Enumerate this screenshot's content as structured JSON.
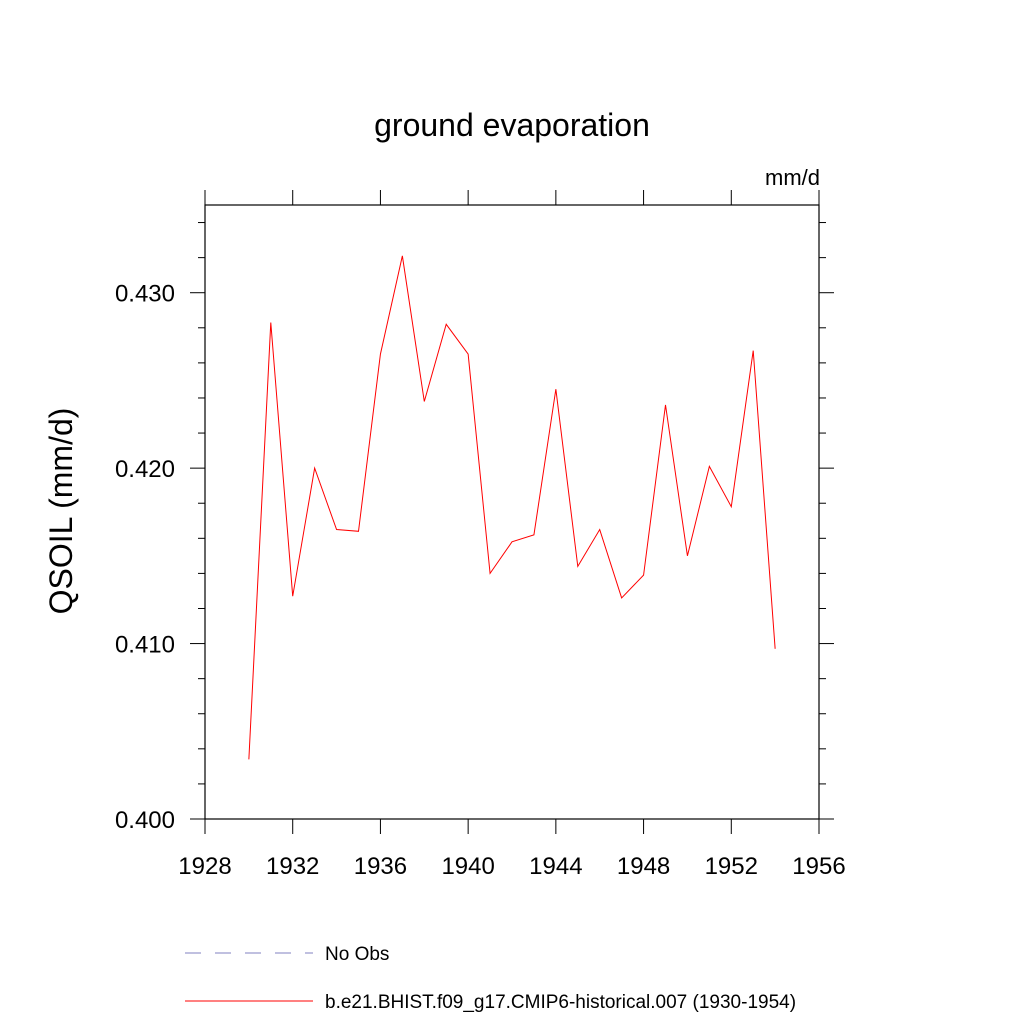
{
  "chart_data": {
    "type": "line",
    "title": "ground evaporation",
    "units": "mm/d",
    "ylabel": "QSOIL  (mm/d)",
    "xlabel": "",
    "xlim": [
      1928,
      1956
    ],
    "ylim": [
      0.4,
      0.435
    ],
    "xticks": [
      "1928",
      "1932",
      "1936",
      "1940",
      "1944",
      "1948",
      "1952",
      "1956"
    ],
    "yticks": [
      "0.400",
      "0.410",
      "0.420",
      "0.430"
    ],
    "series": [
      {
        "name": "b.e21.BHIST.f09_g17.CMIP6-historical.007 (1930-1954)",
        "color": "#ff0000",
        "x": [
          1930,
          1931,
          1932,
          1933,
          1934,
          1935,
          1936,
          1937,
          1938,
          1939,
          1940,
          1941,
          1942,
          1943,
          1944,
          1945,
          1946,
          1947,
          1948,
          1949,
          1950,
          1951,
          1952,
          1953,
          1954
        ],
        "values": [
          0.4034,
          0.4283,
          0.4127,
          0.42,
          0.4165,
          0.4164,
          0.4265,
          0.4321,
          0.4238,
          0.4282,
          0.4265,
          0.414,
          0.4158,
          0.4162,
          0.4245,
          0.4144,
          0.4165,
          0.4126,
          0.4139,
          0.4236,
          0.415,
          0.4201,
          0.4178,
          0.4267,
          0.4097
        ]
      }
    ],
    "legend": [
      {
        "label": "No Obs",
        "style": "dashed",
        "color": "#8080c0"
      },
      {
        "label": "b.e21.BHIST.f09_g17.CMIP6-historical.007 (1930-1954)",
        "style": "solid",
        "color": "#ff0000"
      }
    ]
  }
}
